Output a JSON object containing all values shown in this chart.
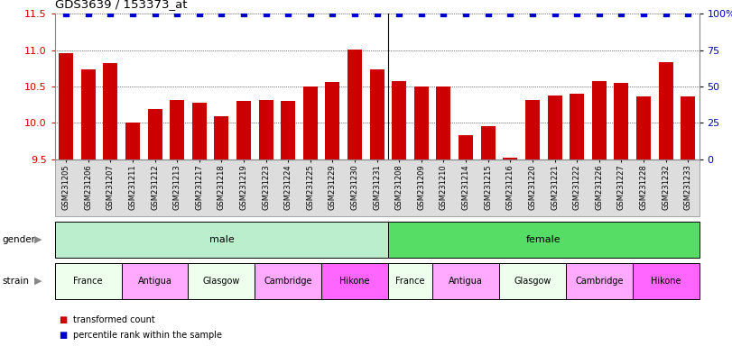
{
  "title": "GDS3639 / 153373_at",
  "samples": [
    "GSM231205",
    "GSM231206",
    "GSM231207",
    "GSM231211",
    "GSM231212",
    "GSM231213",
    "GSM231217",
    "GSM231218",
    "GSM231219",
    "GSM231223",
    "GSM231224",
    "GSM231225",
    "GSM231229",
    "GSM231230",
    "GSM231231",
    "GSM231208",
    "GSM231209",
    "GSM231210",
    "GSM231214",
    "GSM231215",
    "GSM231216",
    "GSM231220",
    "GSM231221",
    "GSM231222",
    "GSM231226",
    "GSM231227",
    "GSM231228",
    "GSM231232",
    "GSM231233"
  ],
  "bar_values": [
    10.96,
    10.74,
    10.82,
    10.01,
    10.19,
    10.31,
    10.28,
    10.09,
    10.3,
    10.31,
    10.3,
    10.5,
    10.56,
    11.01,
    10.73,
    10.58,
    10.5,
    10.5,
    9.83,
    9.95,
    9.52,
    10.32,
    10.38,
    10.4,
    10.58,
    10.55,
    10.36,
    10.83,
    10.36
  ],
  "percentile_values": [
    100,
    100,
    100,
    100,
    100,
    100,
    100,
    100,
    100,
    100,
    100,
    100,
    100,
    100,
    100,
    100,
    100,
    100,
    100,
    100,
    100,
    100,
    100,
    100,
    100,
    100,
    100,
    100,
    100
  ],
  "bar_color": "#cc0000",
  "percentile_color": "#0000cc",
  "ymin": 9.5,
  "ymax": 11.5,
  "yticks": [
    9.5,
    10.0,
    10.5,
    11.0,
    11.5
  ],
  "right_yticks": [
    0,
    25,
    50,
    75,
    100
  ],
  "right_yticklabels": [
    "0",
    "25",
    "50",
    "75",
    "100%"
  ],
  "n_male": 15,
  "gender_groups": [
    {
      "label": "male",
      "start": 0,
      "end": 15,
      "color": "#bbeecc"
    },
    {
      "label": "female",
      "start": 15,
      "end": 29,
      "color": "#55dd66"
    }
  ],
  "strains": [
    {
      "label": "France",
      "start": 0,
      "end": 3,
      "color": "#eeffee"
    },
    {
      "label": "Antigua",
      "start": 3,
      "end": 6,
      "color": "#ffaaff"
    },
    {
      "label": "Glasgow",
      "start": 6,
      "end": 9,
      "color": "#eeffee"
    },
    {
      "label": "Cambridge",
      "start": 9,
      "end": 12,
      "color": "#ffaaff"
    },
    {
      "label": "Hikone",
      "start": 12,
      "end": 15,
      "color": "#ff66ff"
    },
    {
      "label": "France",
      "start": 15,
      "end": 17,
      "color": "#eeffee"
    },
    {
      "label": "Antigua",
      "start": 17,
      "end": 20,
      "color": "#ffaaff"
    },
    {
      "label": "Glasgow",
      "start": 20,
      "end": 23,
      "color": "#eeffee"
    },
    {
      "label": "Cambridge",
      "start": 23,
      "end": 26,
      "color": "#ffaaff"
    },
    {
      "label": "Hikone",
      "start": 26,
      "end": 29,
      "color": "#ff66ff"
    }
  ],
  "legend_bar_label": "transformed count",
  "legend_pct_label": "percentile rank within the sample"
}
